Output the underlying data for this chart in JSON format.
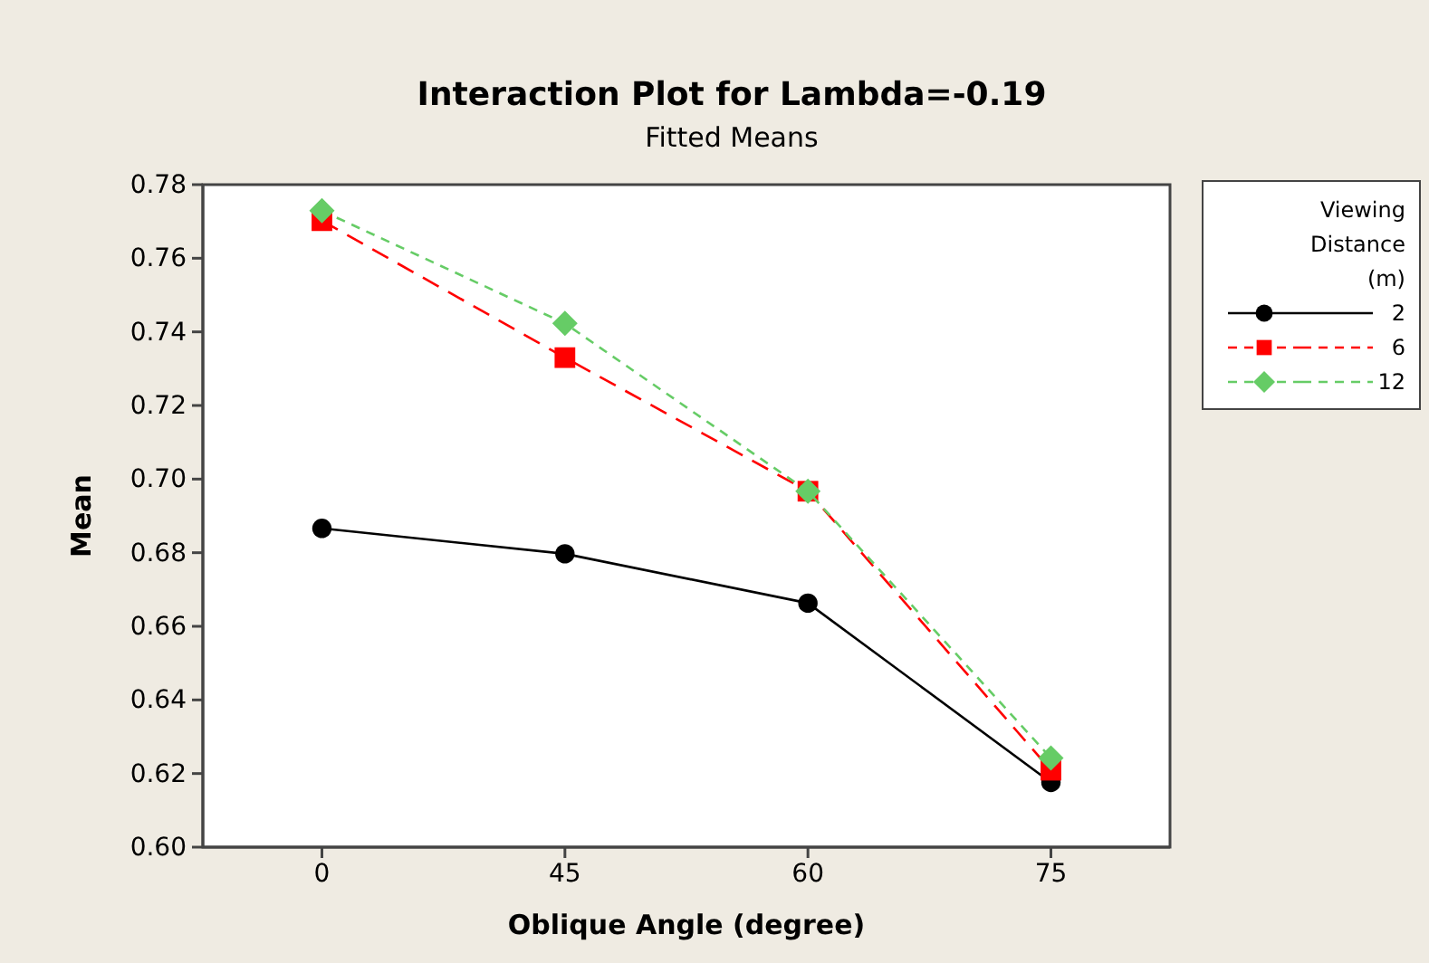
{
  "chart_data": {
    "type": "line",
    "title": "Interaction Plot for Lambda=-0.19",
    "subtitle": "Fitted Means",
    "xlabel": "Oblique Angle (degree)",
    "ylabel": "Mean",
    "legend_title": "Viewing Distance (m)",
    "categories": [
      "0",
      "45",
      "60",
      "75"
    ],
    "series": [
      {
        "name": "2",
        "color": "#000000",
        "marker": "circle",
        "line_style": "solid",
        "values": [
          0.6866,
          0.6797,
          0.6663,
          0.6176
        ]
      },
      {
        "name": "6",
        "color": "#ff0000",
        "marker": "square",
        "line_style": "dashed",
        "values": [
          0.7702,
          0.733,
          0.6967,
          0.6209
        ]
      },
      {
        "name": "12",
        "color": "#66cc66",
        "marker": "diamond",
        "line_style": "dotted",
        "values": [
          0.7729,
          0.7423,
          0.6967,
          0.6242
        ]
      }
    ],
    "ylim": [
      0.6,
      0.78
    ],
    "yticks": [
      {
        "value": 0.6,
        "label": "0.60"
      },
      {
        "value": 0.62,
        "label": "0.62"
      },
      {
        "value": 0.64,
        "label": "0.64"
      },
      {
        "value": 0.66,
        "label": "0.66"
      },
      {
        "value": 0.68,
        "label": "0.68"
      },
      {
        "value": 0.7,
        "label": "0.70"
      },
      {
        "value": 0.72,
        "label": "0.72"
      },
      {
        "value": 0.74,
        "label": "0.74"
      },
      {
        "value": 0.76,
        "label": "0.76"
      },
      {
        "value": 0.78,
        "label": "0.78"
      }
    ],
    "grid": false,
    "legend": "right"
  }
}
